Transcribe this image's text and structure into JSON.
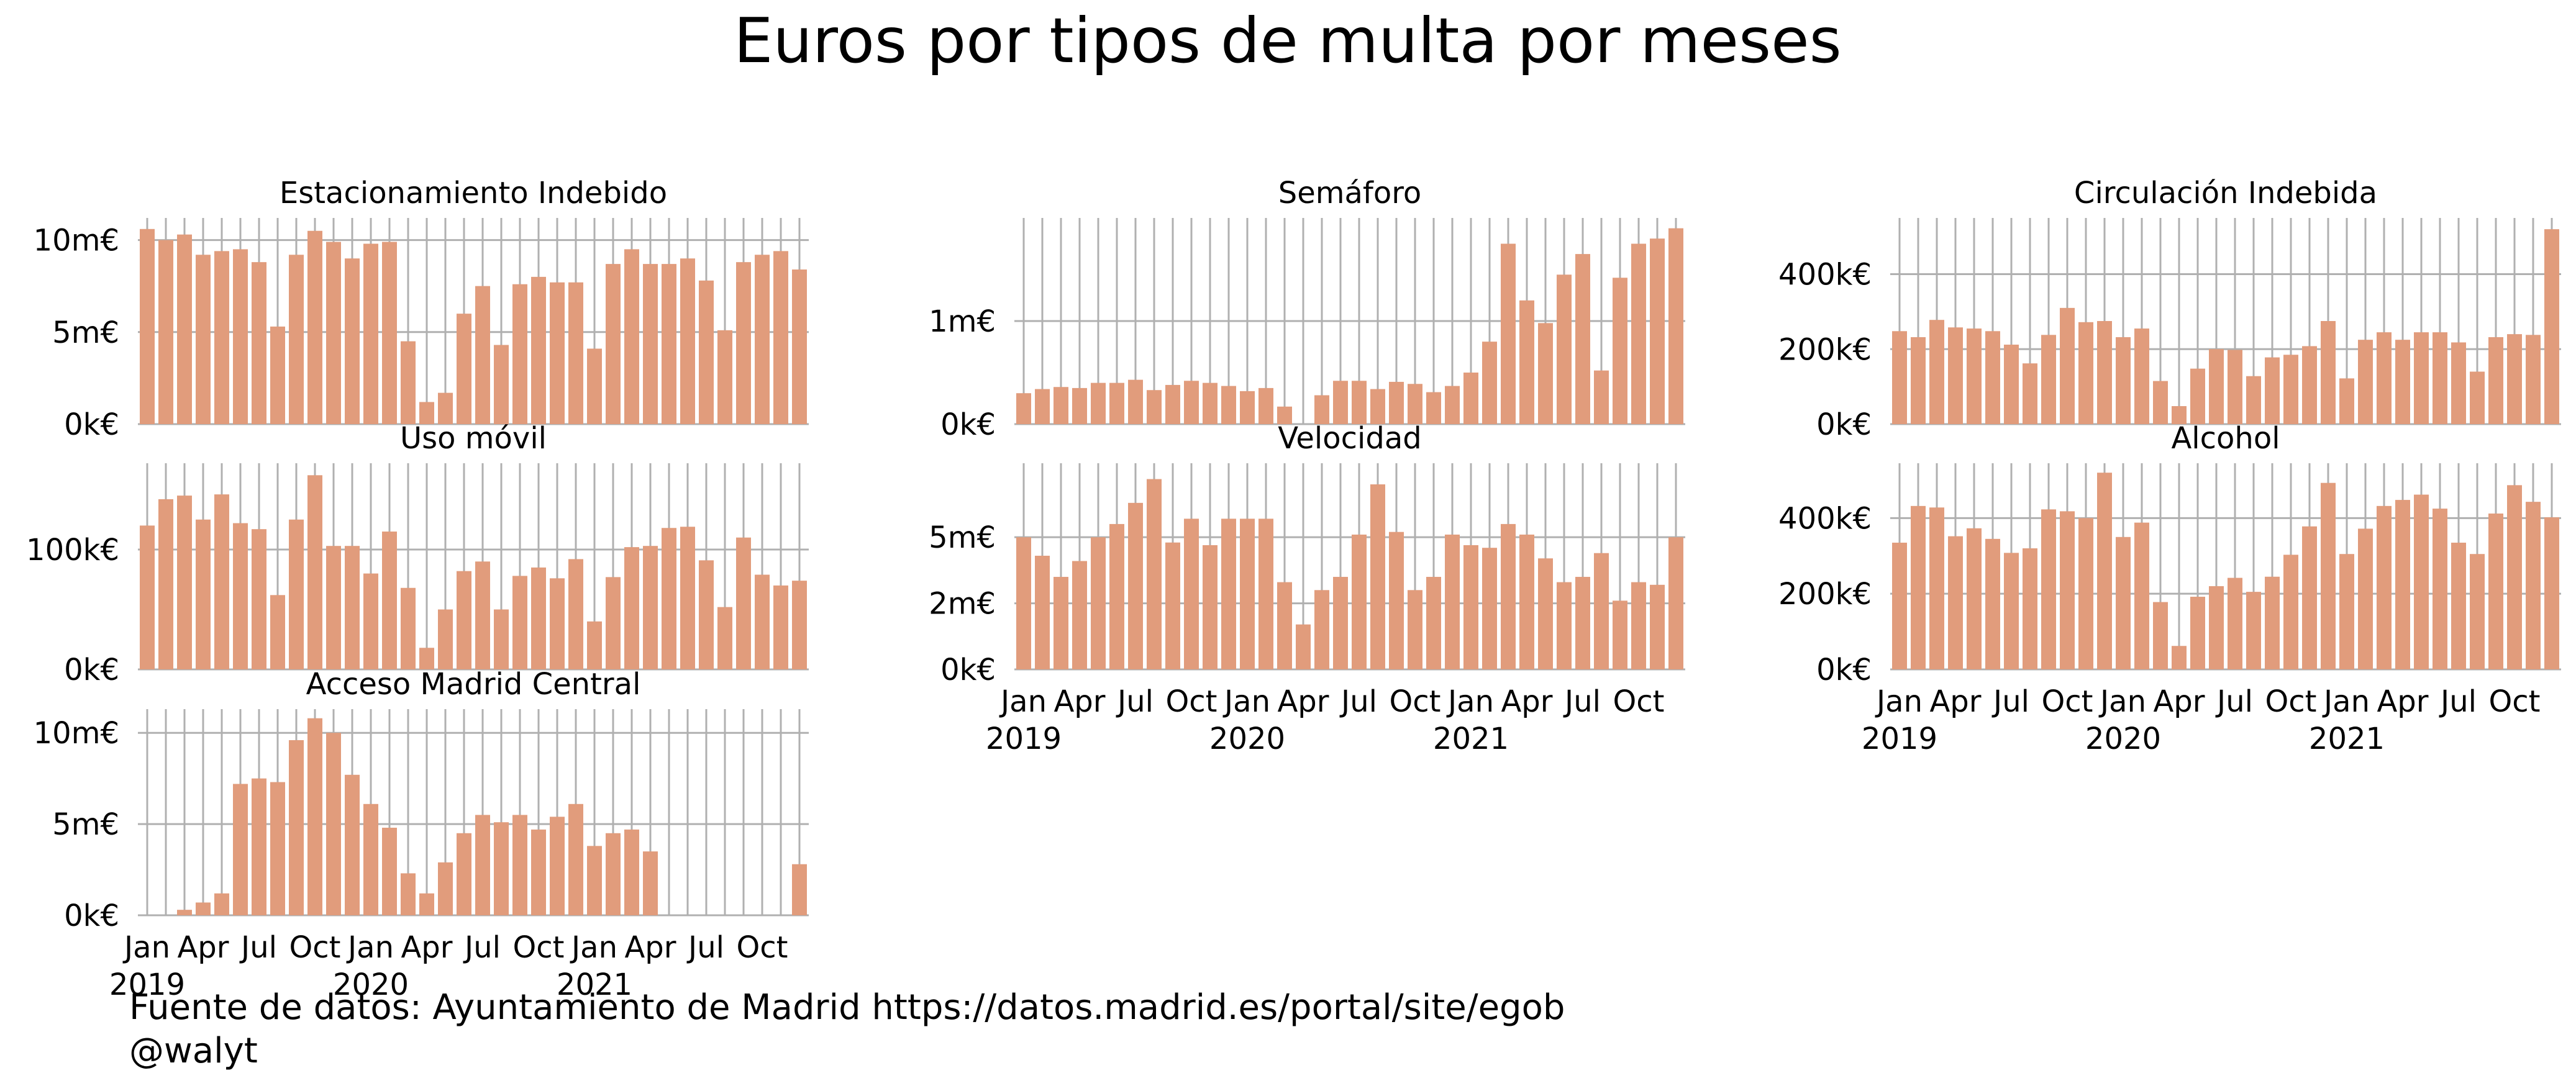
{
  "title": "Euros por tipos de multa por meses",
  "footer": {
    "source": "Fuente de datos: Ayuntamiento de Madrid https://datos.madrid.es/portal/site/egob",
    "author": "@walyt"
  },
  "colors": {
    "bar": "#e19c7c",
    "grid": "#b0b0b0"
  },
  "x_tick_labels": [
    "Jan",
    "Apr",
    "Jul",
    "Oct",
    "Jan",
    "Apr",
    "Jul",
    "Oct",
    "Jan",
    "Apr",
    "Jul",
    "Oct"
  ],
  "x_year_labels": [
    "2019",
    "2020",
    "2021"
  ],
  "chart_data": [
    {
      "type": "bar",
      "title": "Estacionamiento Indebido",
      "categories": [
        "2019-01",
        "2019-02",
        "2019-03",
        "2019-04",
        "2019-05",
        "2019-06",
        "2019-07",
        "2019-08",
        "2019-09",
        "2019-10",
        "2019-11",
        "2019-12",
        "2020-01",
        "2020-02",
        "2020-03",
        "2020-04",
        "2020-05",
        "2020-06",
        "2020-07",
        "2020-08",
        "2020-09",
        "2020-10",
        "2020-11",
        "2020-12",
        "2021-01",
        "2021-02",
        "2021-03",
        "2021-04",
        "2021-05",
        "2021-06",
        "2021-07",
        "2021-08",
        "2021-09",
        "2021-10",
        "2021-11",
        "2021-12"
      ],
      "values": [
        10.6,
        10.0,
        10.3,
        9.2,
        9.4,
        9.5,
        8.8,
        5.3,
        9.2,
        10.5,
        9.9,
        9.0,
        9.8,
        9.9,
        4.5,
        1.2,
        1.7,
        6.0,
        7.5,
        4.3,
        7.6,
        8.0,
        7.7,
        7.7,
        4.1,
        8.7,
        9.5,
        8.7,
        8.7,
        9.0,
        7.8,
        5.1,
        8.8,
        9.2,
        9.4,
        8.4
      ],
      "ylim": [
        0,
        11.2
      ],
      "yticks": [
        {
          "v": 0,
          "label": "0k€"
        },
        {
          "v": 5,
          "label": "5m€"
        },
        {
          "v": 10,
          "label": "10m€"
        }
      ],
      "show_xticks": false
    },
    {
      "type": "bar",
      "title": "Semáforo",
      "categories": [
        "2019-01",
        "2019-02",
        "2019-03",
        "2019-04",
        "2019-05",
        "2019-06",
        "2019-07",
        "2019-08",
        "2019-09",
        "2019-10",
        "2019-11",
        "2019-12",
        "2020-01",
        "2020-02",
        "2020-03",
        "2020-04",
        "2020-05",
        "2020-06",
        "2020-07",
        "2020-08",
        "2020-09",
        "2020-10",
        "2020-11",
        "2020-12",
        "2021-01",
        "2021-02",
        "2021-03",
        "2021-04",
        "2021-05",
        "2021-06",
        "2021-07",
        "2021-08",
        "2021-09",
        "2021-10",
        "2021-11",
        "2021-12"
      ],
      "values": [
        0.3,
        0.34,
        0.36,
        0.35,
        0.4,
        0.4,
        0.43,
        0.33,
        0.38,
        0.42,
        0.4,
        0.37,
        0.32,
        0.35,
        0.17,
        0.0,
        0.28,
        0.42,
        0.42,
        0.34,
        0.41,
        0.39,
        0.31,
        0.37,
        0.5,
        0.8,
        1.75,
        1.2,
        0.98,
        1.45,
        1.65,
        0.52,
        1.42,
        1.75,
        1.8,
        1.9
      ],
      "ylim": [
        0,
        2.0
      ],
      "yticks": [
        {
          "v": 0,
          "label": "0k€"
        },
        {
          "v": 1,
          "label": "1m€"
        }
      ],
      "show_xticks": false
    },
    {
      "type": "bar",
      "title": "Circulación Indebida",
      "categories": [
        "2019-01",
        "2019-02",
        "2019-03",
        "2019-04",
        "2019-05",
        "2019-06",
        "2019-07",
        "2019-08",
        "2019-09",
        "2019-10",
        "2019-11",
        "2019-12",
        "2020-01",
        "2020-02",
        "2020-03",
        "2020-04",
        "2020-05",
        "2020-06",
        "2020-07",
        "2020-08",
        "2020-09",
        "2020-10",
        "2020-11",
        "2020-12",
        "2021-01",
        "2021-02",
        "2021-03",
        "2021-04",
        "2021-05",
        "2021-06",
        "2021-07",
        "2021-08",
        "2021-09",
        "2021-10",
        "2021-11",
        "2021-12"
      ],
      "values": [
        248,
        232,
        278,
        258,
        255,
        248,
        212,
        162,
        238,
        310,
        272,
        275,
        232,
        255,
        115,
        48,
        148,
        200,
        198,
        128,
        178,
        185,
        208,
        275,
        122,
        225,
        245,
        225,
        245,
        245,
        218,
        140,
        232,
        240,
        238,
        520
      ],
      "ylim": [
        0,
        550
      ],
      "yticks": [
        {
          "v": 0,
          "label": "0k€"
        },
        {
          "v": 200,
          "label": "200k€"
        },
        {
          "v": 400,
          "label": "400k€"
        }
      ],
      "show_xticks": false
    },
    {
      "type": "bar",
      "title": "Uso móvil",
      "categories": [
        "2019-01",
        "2019-02",
        "2019-03",
        "2019-04",
        "2019-05",
        "2019-06",
        "2019-07",
        "2019-08",
        "2019-09",
        "2019-10",
        "2019-11",
        "2019-12",
        "2020-01",
        "2020-02",
        "2020-03",
        "2020-04",
        "2020-05",
        "2020-06",
        "2020-07",
        "2020-08",
        "2020-09",
        "2020-10",
        "2020-11",
        "2020-12",
        "2021-01",
        "2021-02",
        "2021-03",
        "2021-04",
        "2021-05",
        "2021-06",
        "2021-07",
        "2021-08",
        "2021-09",
        "2021-10",
        "2021-11",
        "2021-12"
      ],
      "values": [
        120,
        142,
        145,
        125,
        146,
        122,
        117,
        62,
        125,
        162,
        103,
        103,
        80,
        115,
        68,
        18,
        50,
        82,
        90,
        50,
        78,
        85,
        76,
        92,
        40,
        77,
        102,
        103,
        118,
        119,
        91,
        52,
        110,
        79,
        70,
        74
      ],
      "ylim": [
        0,
        172
      ],
      "yticks": [
        {
          "v": 0,
          "label": "0k€"
        },
        {
          "v": 100,
          "label": "100k€"
        }
      ],
      "show_xticks": false
    },
    {
      "type": "bar",
      "title": "Velocidad",
      "categories": [
        "2019-01",
        "2019-02",
        "2019-03",
        "2019-04",
        "2019-05",
        "2019-06",
        "2019-07",
        "2019-08",
        "2019-09",
        "2019-10",
        "2019-11",
        "2019-12",
        "2020-01",
        "2020-02",
        "2020-03",
        "2020-04",
        "2020-05",
        "2020-06",
        "2020-07",
        "2020-08",
        "2020-09",
        "2020-10",
        "2020-11",
        "2020-12",
        "2021-01",
        "2021-02",
        "2021-03",
        "2021-04",
        "2021-05",
        "2021-06",
        "2021-07",
        "2021-08",
        "2021-09",
        "2021-10",
        "2021-11",
        "2021-12"
      ],
      "values": [
        5.0,
        4.3,
        3.5,
        4.1,
        5.0,
        5.5,
        6.3,
        7.2,
        4.8,
        5.7,
        4.7,
        5.7,
        5.7,
        5.7,
        3.3,
        1.7,
        3.0,
        3.5,
        5.1,
        7.0,
        5.2,
        3.0,
        3.5,
        5.1,
        4.7,
        4.6,
        5.5,
        5.1,
        4.2,
        3.3,
        3.5,
        4.4,
        2.6,
        3.3,
        3.2,
        5.0
      ],
      "ylim": [
        0,
        7.8
      ],
      "yticks": [
        {
          "v": 0,
          "label": "0k€"
        },
        {
          "v": 2.5,
          "label": "2m€"
        },
        {
          "v": 5,
          "label": "5m€"
        }
      ],
      "show_xticks": true
    },
    {
      "type": "bar",
      "title": "Alcohol",
      "categories": [
        "2019-01",
        "2019-02",
        "2019-03",
        "2019-04",
        "2019-05",
        "2019-06",
        "2019-07",
        "2019-08",
        "2019-09",
        "2019-10",
        "2019-11",
        "2019-12",
        "2020-01",
        "2020-02",
        "2020-03",
        "2020-04",
        "2020-05",
        "2020-06",
        "2020-07",
        "2020-08",
        "2020-09",
        "2020-10",
        "2020-11",
        "2020-12",
        "2021-01",
        "2021-02",
        "2021-03",
        "2021-04",
        "2021-05",
        "2021-06",
        "2021-07",
        "2021-08",
        "2021-09",
        "2021-10",
        "2021-11",
        "2021-12"
      ],
      "values": [
        335,
        432,
        428,
        352,
        373,
        345,
        308,
        320,
        423,
        418,
        400,
        520,
        350,
        388,
        178,
        62,
        192,
        220,
        242,
        205,
        245,
        303,
        378,
        493,
        305,
        372,
        432,
        448,
        462,
        425,
        335,
        305,
        412,
        487,
        443,
        402
      ],
      "ylim": [
        0,
        545
      ],
      "yticks": [
        {
          "v": 0,
          "label": "0k€"
        },
        {
          "v": 200,
          "label": "200k€"
        },
        {
          "v": 400,
          "label": "400k€"
        }
      ],
      "show_xticks": true
    },
    {
      "type": "bar",
      "title": "Acceso Madrid Central",
      "categories": [
        "2019-01",
        "2019-02",
        "2019-03",
        "2019-04",
        "2019-05",
        "2019-06",
        "2019-07",
        "2019-08",
        "2019-09",
        "2019-10",
        "2019-11",
        "2019-12",
        "2020-01",
        "2020-02",
        "2020-03",
        "2020-04",
        "2020-05",
        "2020-06",
        "2020-07",
        "2020-08",
        "2020-09",
        "2020-10",
        "2020-11",
        "2020-12",
        "2021-01",
        "2021-02",
        "2021-03",
        "2021-04",
        "2021-05",
        "2021-06",
        "2021-07",
        "2021-08",
        "2021-09",
        "2021-10",
        "2021-11",
        "2021-12"
      ],
      "values": [
        0,
        0,
        0.3,
        0.7,
        1.2,
        7.2,
        7.5,
        7.3,
        9.6,
        10.8,
        10.0,
        7.7,
        6.1,
        4.8,
        2.3,
        1.2,
        2.9,
        4.5,
        5.5,
        5.1,
        5.5,
        4.7,
        5.4,
        6.1,
        3.8,
        4.5,
        4.7,
        3.5,
        0,
        0,
        0,
        0,
        0,
        0,
        0,
        2.8
      ],
      "ylim": [
        0,
        11.3
      ],
      "yticks": [
        {
          "v": 0,
          "label": "0k€"
        },
        {
          "v": 5,
          "label": "5m€"
        },
        {
          "v": 10,
          "label": "10m€"
        }
      ],
      "show_xticks": true
    }
  ]
}
